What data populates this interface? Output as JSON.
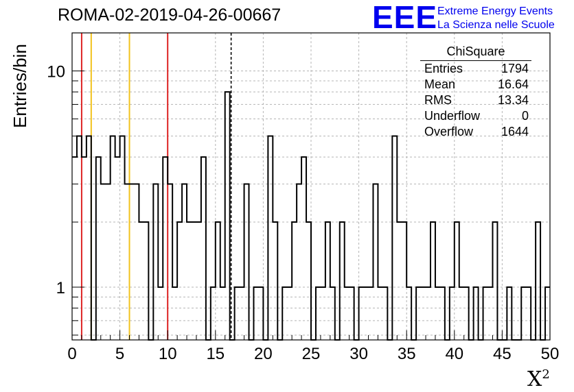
{
  "title": "ROMA-02-2019-04-26-00667",
  "logo": {
    "mark": "EEE",
    "line1": "Extreme Energy Events",
    "line2": "La Scienza nelle Scuole"
  },
  "colors": {
    "red": "#dd2222",
    "yellow": "#f2c21c",
    "grid": "#b4b4b4",
    "axis": "#000000",
    "logo": "#0000ee"
  },
  "stats": {
    "name": "ChiSquare",
    "rows": [
      {
        "label": "Entries",
        "value": "1794"
      },
      {
        "label": "Mean",
        "value": "16.64"
      },
      {
        "label": "RMS",
        "value": "13.34"
      },
      {
        "label": "Underflow",
        "value": "0"
      },
      {
        "label": "Overflow",
        "value": "1644"
      }
    ]
  },
  "chart_data": {
    "type": "histogram",
    "ylabel": "Entries/bin",
    "xlabel": "X",
    "xlabel_sup": "2",
    "xlim": [
      0,
      50
    ],
    "ylim": [
      0.57,
      15
    ],
    "yscale": "log",
    "bin_width": 0.5,
    "xticks": [
      0,
      5,
      10,
      15,
      20,
      25,
      30,
      35,
      40,
      45,
      50
    ],
    "yticks": [
      1,
      10
    ],
    "grid": true,
    "counts": [
      4,
      5,
      4,
      5,
      0,
      4,
      3,
      3,
      5,
      4,
      5,
      3,
      3,
      3,
      2,
      2,
      0,
      3,
      1,
      4,
      3,
      1,
      2,
      3,
      2,
      2,
      2,
      4,
      0,
      1,
      2,
      1,
      8,
      0,
      1,
      1,
      3,
      0,
      1,
      1,
      0,
      5,
      2,
      0,
      1,
      1,
      2,
      3,
      4,
      2,
      0,
      1,
      1,
      2,
      1,
      0,
      2,
      1,
      1,
      0,
      1,
      1,
      1,
      3,
      1,
      1,
      0,
      5,
      2,
      2,
      1,
      0,
      1,
      1,
      1,
      2,
      1,
      1,
      0,
      1,
      2,
      1,
      1,
      0,
      1,
      0,
      1,
      1,
      2,
      0,
      0,
      1,
      0,
      0,
      1,
      1,
      0,
      2,
      0,
      1
    ],
    "vlines": [
      {
        "x": 1,
        "color": "red",
        "style": "solid"
      },
      {
        "x": 2,
        "color": "yellow",
        "style": "solid"
      },
      {
        "x": 6,
        "color": "yellow",
        "style": "solid"
      },
      {
        "x": 10,
        "color": "red",
        "style": "solid"
      },
      {
        "x": 16.64,
        "color": "black",
        "style": "dashed"
      }
    ]
  }
}
